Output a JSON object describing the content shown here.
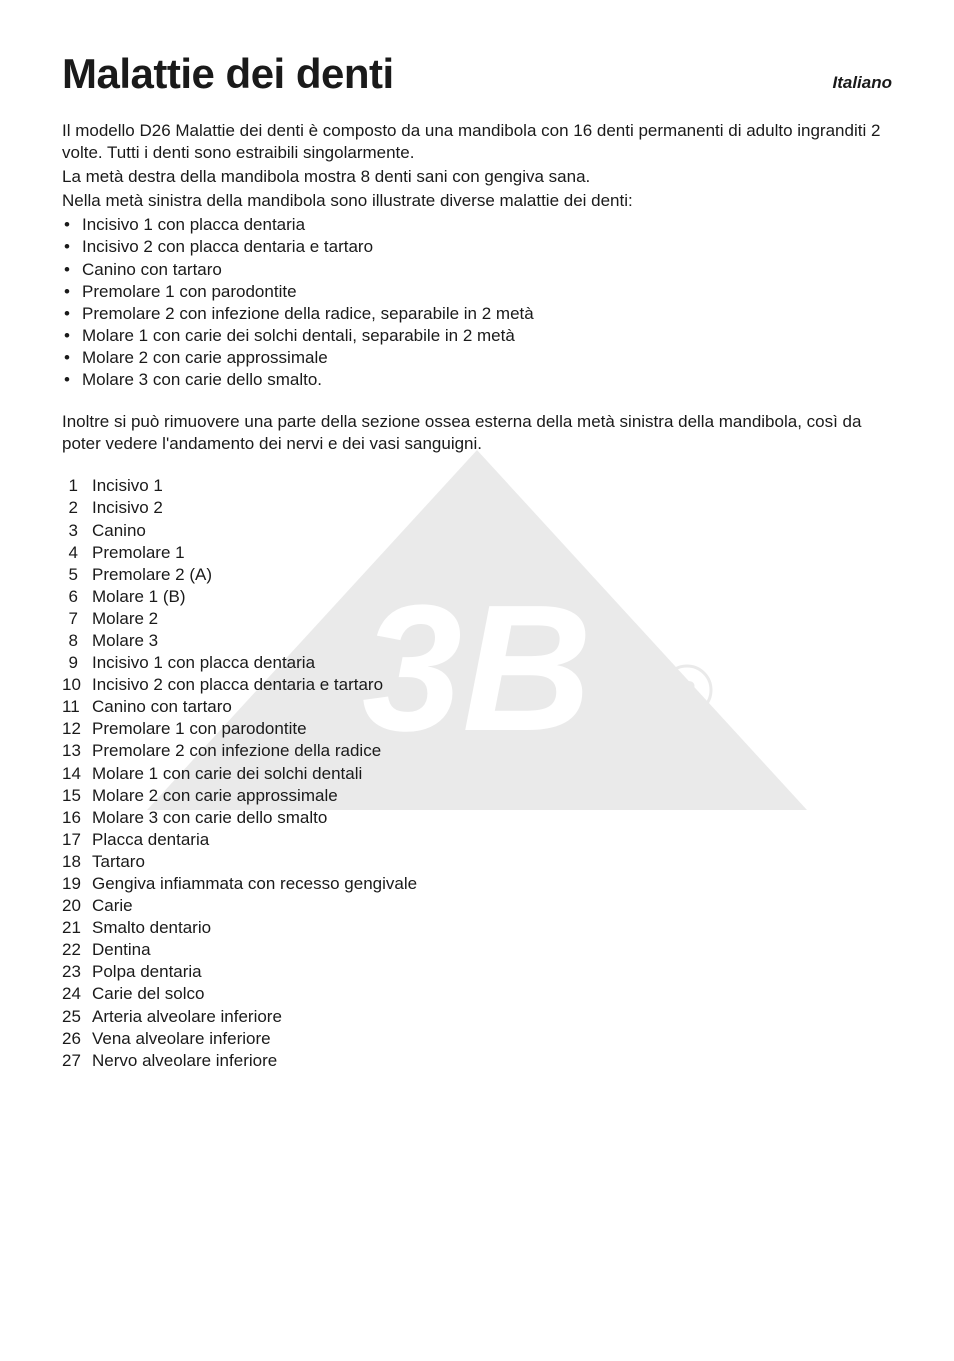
{
  "header": {
    "title": "Malattie dei denti",
    "language": "Italiano"
  },
  "intro_lines": [
    "Il modello D26 Malattie dei denti è composto da una mandibola con 16 denti permanenti di adulto ingranditi 2 volte. Tutti i denti sono estraibili singolarmente.",
    "La metà destra della mandibola mostra 8 denti sani con gengiva sana.",
    "Nella metà sinistra della mandibola sono illustrate diverse malattie dei denti:"
  ],
  "bullet_items": [
    "Incisivo 1 con placca dentaria",
    "Incisivo 2 con placca dentaria e tartaro",
    "Canino con tartaro",
    "Premolare 1 con parodontite",
    "Premolare 2 con infezione della radice, separabile in 2 metà",
    "Molare 1 con carie dei solchi dentali, separabile in 2 metà",
    "Molare 2 con carie approssimale",
    "Molare 3 con carie dello smalto."
  ],
  "mid_paragraph": "Inoltre si può rimuovere una parte della sezione ossea esterna della metà sinistra della mandibola, così da poter vedere l'andamento dei nervi e dei vasi sanguigni.",
  "numbered_list": [
    {
      "n": "1",
      "label": "Incisivo 1"
    },
    {
      "n": "2",
      "label": "Incisivo 2"
    },
    {
      "n": "3",
      "label": "Canino"
    },
    {
      "n": "4",
      "label": "Premolare 1"
    },
    {
      "n": "5",
      "label": "Premolare 2 (A)"
    },
    {
      "n": "6",
      "label": "Molare 1 (B)"
    },
    {
      "n": "7",
      "label": "Molare 2"
    },
    {
      "n": "8",
      "label": "Molare 3"
    },
    {
      "n": "9",
      "label": "Incisivo 1 con placca dentaria"
    },
    {
      "n": "10",
      "label": "Incisivo 2 con placca dentaria e tartaro"
    },
    {
      "n": "11",
      "label": "Canino con tartaro"
    },
    {
      "n": "12",
      "label": "Premolare 1 con parodontite"
    },
    {
      "n": "13",
      "label": "Premolare 2 con infezione della radice"
    },
    {
      "n": "14",
      "label": "Molare 1 con carie dei solchi dentali"
    },
    {
      "n": "15",
      "label": "Molare 2 con carie approssimale"
    },
    {
      "n": "16",
      "label": "Molare 3 con carie dello smalto"
    },
    {
      "n": "17",
      "label": "Placca dentaria"
    },
    {
      "n": "18",
      "label": "Tartaro"
    },
    {
      "n": "19",
      "label": "Gengiva infiammata con recesso gengivale"
    },
    {
      "n": "20",
      "label": "Carie"
    },
    {
      "n": "21",
      "label": "Smalto dentario"
    },
    {
      "n": "22",
      "label": "Dentina"
    },
    {
      "n": "23",
      "label": "Polpa dentaria"
    },
    {
      "n": "24",
      "label": "Carie del solco"
    },
    {
      "n": "25",
      "label": "Arteria alveolare inferiore"
    },
    {
      "n": "26",
      "label": "Vena alveolare inferiore"
    },
    {
      "n": "27",
      "label": "Nervo alveolare inferiore"
    }
  ],
  "watermark": {
    "brand": "3B",
    "registered": "®",
    "fill": "#000000",
    "opacity": 0.08
  }
}
